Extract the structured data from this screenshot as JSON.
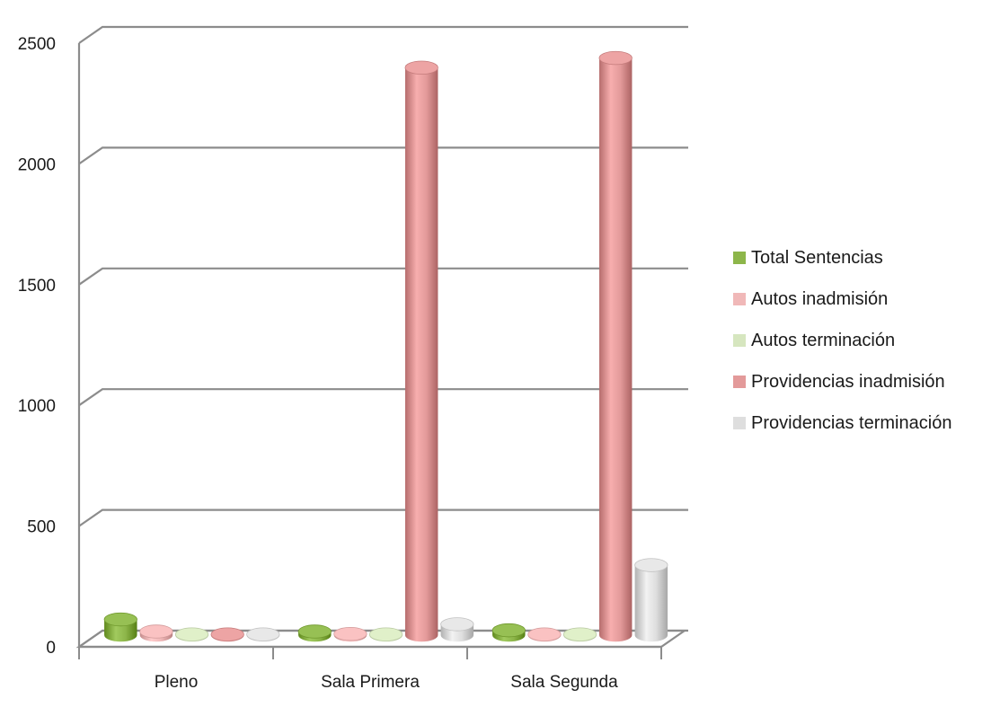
{
  "chart_data": {
    "type": "bar",
    "title": "",
    "xlabel": "",
    "ylabel": "",
    "ylim": [
      0,
      2500
    ],
    "y_ticks": [
      0,
      500,
      1000,
      1500,
      2000,
      2500
    ],
    "y_tick_labels": [
      "0",
      "500",
      "1000",
      "1500",
      "2000",
      "2500"
    ],
    "categories": [
      "Pleno",
      "Sala Primera",
      "Sala Segunda"
    ],
    "series": [
      {
        "name": "Total Sentencias",
        "color": "#8db64a",
        "values": [
          65,
          15,
          20
        ]
      },
      {
        "name": "Autos inadmisión",
        "color": "#f0b8b8",
        "values": [
          15,
          5,
          3
        ]
      },
      {
        "name": "Autos terminación",
        "color": "#d6e6bf",
        "values": [
          3,
          3,
          3
        ]
      },
      {
        "name": "Providencias inadmisión",
        "color": "#e39a9a",
        "values": [
          3,
          2350,
          2390
        ]
      },
      {
        "name": "Providencias terminación",
        "color": "#dedede",
        "values": [
          3,
          45,
          290
        ]
      }
    ],
    "grid": true,
    "legend_position": "right",
    "style": "3d-cylinder"
  }
}
